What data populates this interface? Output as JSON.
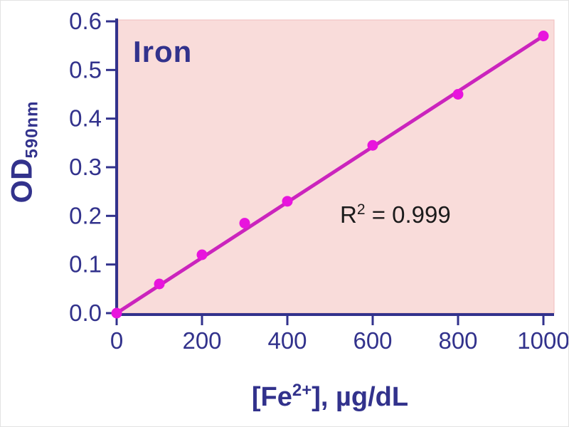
{
  "chart": {
    "title": "Iron",
    "y_axis": {
      "label_main": "OD",
      "label_sub": "590nm"
    },
    "x_axis": {
      "label_prefix": "[Fe",
      "label_sup": "2+",
      "label_suffix": "], µg/dL"
    },
    "annotation": {
      "base": "R",
      "sup": "2",
      "rest": " = 0.999"
    }
  },
  "chart_data": {
    "type": "scatter",
    "title": "Iron",
    "x": [
      0,
      100,
      200,
      300,
      400,
      600,
      800,
      1000
    ],
    "y": [
      0.0,
      0.06,
      0.12,
      0.185,
      0.23,
      0.345,
      0.45,
      0.57
    ],
    "fit_line": {
      "x0": 0,
      "y0": 0.0,
      "x1": 1000,
      "y1": 0.57
    },
    "annotation": "R2 = 0.999",
    "xlabel": "[Fe2+], µg/dL",
    "ylabel": "OD 590nm",
    "xlim": [
      0,
      1000
    ],
    "ylim": [
      0,
      0.6
    ],
    "x_ticks": [
      0,
      200,
      400,
      600,
      800,
      1000
    ],
    "x_tick_labels": [
      "0",
      "200",
      "400",
      "600",
      "800",
      "1000"
    ],
    "y_ticks": [
      0.0,
      0.1,
      0.2,
      0.3,
      0.4,
      0.5,
      0.6
    ],
    "y_tick_labels": [
      "0.0",
      "0.1",
      "0.2",
      "0.3",
      "0.4",
      "0.5",
      "0.6"
    ],
    "grid": false,
    "legend": "none",
    "colors": {
      "line": "#cb24bd",
      "marker": "#e814dd",
      "plot_bg": "#f9dcda",
      "plot_border": "#f0bdbd",
      "axis": "#32328c",
      "text": "#32328c",
      "annotation_text": "#1b1b1b"
    }
  }
}
